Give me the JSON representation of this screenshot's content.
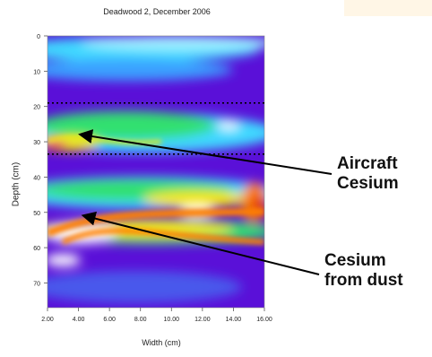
{
  "chart_data": {
    "type": "heatmap",
    "title": "Deadwood 2, December 2006",
    "xlabel": "Width (cm)",
    "ylabel": "Depth (cm)",
    "x_ticks": [
      "2.00",
      "4.00",
      "6.00",
      "8.00",
      "10.00",
      "12.00",
      "14.00",
      "16.00"
    ],
    "y_ticks": [
      "0",
      "10",
      "20",
      "30",
      "40",
      "50",
      "60",
      "70"
    ],
    "xlim": [
      2,
      16
    ],
    "ylim": [
      0,
      77
    ],
    "dotted_lines_depth": [
      19,
      33.5
    ],
    "annotations": [
      {
        "text_lines": [
          "Aircraft",
          "Cesium"
        ],
        "points_to": {
          "x": 4.2,
          "y": 28
        }
      },
      {
        "text_lines": [
          "Cesium",
          "from dust"
        ],
        "points_to": {
          "x": 4.4,
          "y": 51
        }
      }
    ],
    "colors": {
      "low": "#5a10d8",
      "mid_low": "#3aa0ff",
      "mid": "#40d8ff",
      "mid_high": "#30e070",
      "high": "#f8e800",
      "very_high": "#ff8000",
      "peak": "#ffffff"
    }
  }
}
